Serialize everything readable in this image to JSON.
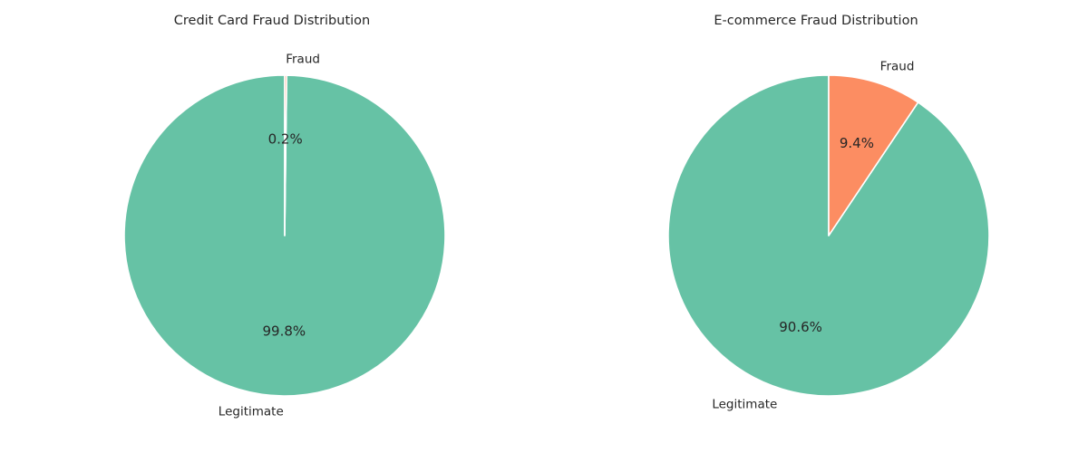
{
  "chart_data": [
    {
      "type": "pie",
      "title": "Credit Card Fraud Distribution",
      "categories": [
        "Legitimate",
        "Fraud"
      ],
      "values": [
        99.8,
        0.2
      ],
      "percent_labels": [
        "99.8%",
        "0.2%"
      ],
      "colors": [
        "#66c2a5",
        "#fc8d62"
      ],
      "start_angle_deg": 90,
      "direction": "counterclockwise"
    },
    {
      "type": "pie",
      "title": "E-commerce Fraud Distribution",
      "categories": [
        "Legitimate",
        "Fraud"
      ],
      "values": [
        90.6,
        9.4
      ],
      "percent_labels": [
        "90.6%",
        "9.4%"
      ],
      "colors": [
        "#66c2a5",
        "#fc8d62"
      ],
      "start_angle_deg": 90,
      "direction": "counterclockwise"
    }
  ]
}
